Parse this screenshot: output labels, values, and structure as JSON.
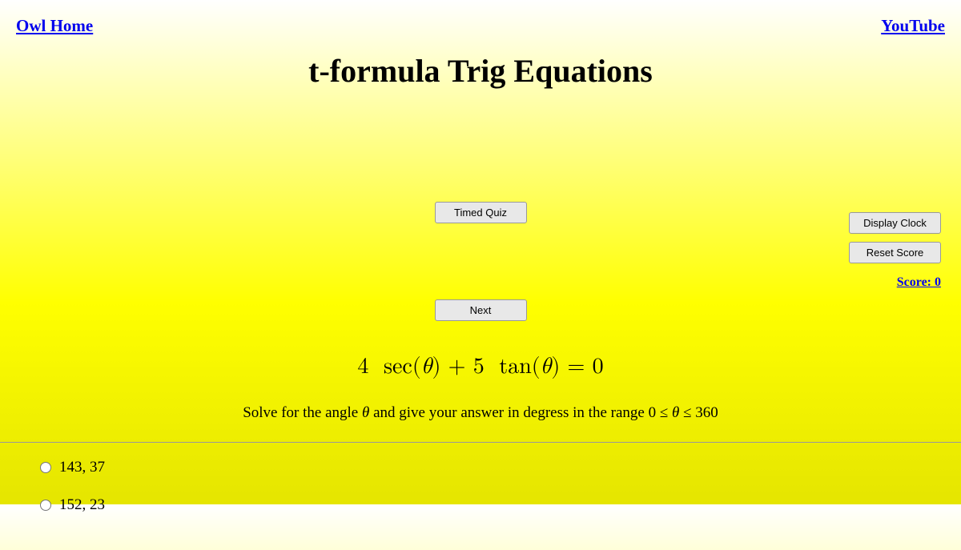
{
  "nav": {
    "home_label": "Owl Home",
    "youtube_label": "YouTube"
  },
  "page_title": "t-formula Trig Equations",
  "buttons": {
    "timed_quiz": "Timed Quiz",
    "display_clock": "Display Clock",
    "reset_score": "Reset Score",
    "next": "Next"
  },
  "score": {
    "label": "Score: 0"
  },
  "equation": {
    "text": "4  sec(θ) + 5  tan(θ) = 0"
  },
  "instruction": {
    "prefix": "Solve for the angle ",
    "var1": "θ",
    "middle": " and give your answer in degress in the range ",
    "range": "0 ≤ θ ≤ 360"
  },
  "options": [
    "143, 37",
    "152, 23"
  ]
}
